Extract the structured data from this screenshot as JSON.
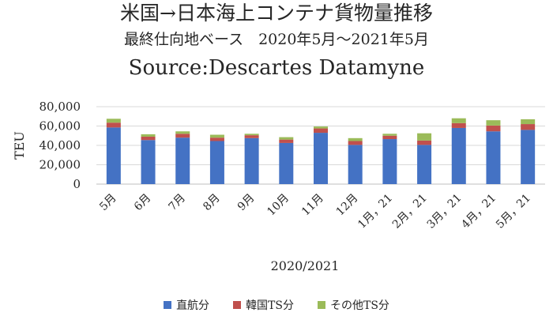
{
  "chart_data": {
    "type": "bar",
    "stacked": true,
    "title": "米国→日本海上コンテナ貨物量推移",
    "subtitle": "最終仕向地ベース　2020年5月～2021年5月",
    "source": "Source:Descartes Datamyne",
    "xlabel": "2020/2021",
    "ylabel": "TEU",
    "ylim": [
      0,
      80000
    ],
    "yticks": [
      "0",
      "20,000",
      "40,000",
      "60,000",
      "80,000"
    ],
    "ytick_values": [
      0,
      20000,
      40000,
      60000,
      80000
    ],
    "grid": true,
    "legend_position": "bottom",
    "categories": [
      "5月",
      "6月",
      "7月",
      "8月",
      "9月",
      "10月",
      "11月",
      "12月",
      "1月，21",
      "2月，21",
      "3月，21",
      "4月，21",
      "5月，21"
    ],
    "series": [
      {
        "name": "直航分",
        "color": "#4472C4",
        "values": [
          58500,
          45500,
          48000,
          44500,
          47500,
          42500,
          53000,
          40500,
          46500,
          40500,
          58000,
          54500,
          56000
        ]
      },
      {
        "name": "韓国TS分",
        "color": "#C0504D",
        "values": [
          5000,
          3500,
          4000,
          3500,
          3000,
          3500,
          4500,
          4000,
          3500,
          4500,
          5000,
          6000,
          6000
        ]
      },
      {
        "name": "その他TS分",
        "color": "#9BBB59",
        "values": [
          4000,
          2500,
          2500,
          3000,
          1500,
          2500,
          2000,
          3000,
          2000,
          7500,
          5000,
          5500,
          5000
        ]
      }
    ]
  }
}
